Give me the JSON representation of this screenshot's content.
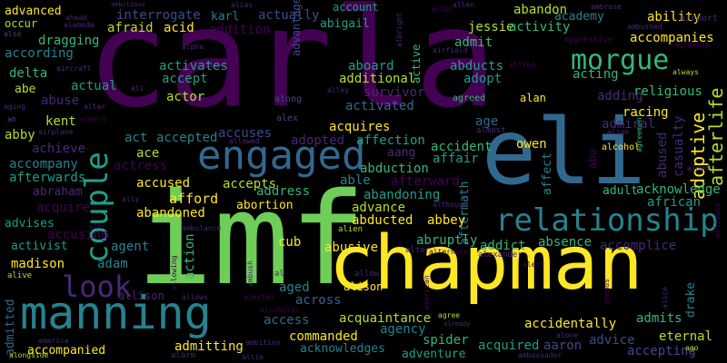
{
  "palette": {
    "purple": "#440154",
    "indigo": "#482878",
    "blue": "#3e4a89",
    "steel": "#31688e",
    "teal": "#26828e",
    "seagreen": "#1f9e89",
    "green": "#35b779",
    "lime": "#6ece58",
    "yellowgreen": "#b5de2b",
    "yellow": "#fde725"
  },
  "words": [
    "carla",
    "imf",
    "chapman",
    "eli",
    "manning",
    "engaged",
    "relationship",
    "couple",
    "morgue",
    "look",
    "adoptive",
    "afterlife",
    "abandon",
    "ability",
    "academy",
    "advanced",
    "occur",
    "interrogate",
    "karl",
    "actually",
    "account",
    "abigail",
    "jessie",
    "activity",
    "accompanies",
    "acid",
    "addition",
    "afraid",
    "dragging",
    "according",
    "admit",
    "abducts",
    "adopt",
    "acting",
    "activates",
    "accept",
    "additional",
    "aboard",
    "delta",
    "abe",
    "actual",
    "actor",
    "abuse",
    "survivor",
    "activated",
    "religious",
    "adding",
    "racing",
    "acquires",
    "age",
    "admiral",
    "kent",
    "abby",
    "achieve",
    "act",
    "accepted",
    "accuses",
    "adopted",
    "affection",
    "accident",
    "affair",
    "aang",
    "owen",
    "abused",
    "casualty",
    "acknowledge",
    "african",
    "ace",
    "actress",
    "accompany",
    "afterwards",
    "abduction",
    "able",
    "accused",
    "accepts",
    "address",
    "abandoning",
    "aftermath",
    "abraham",
    "afford",
    "advance",
    "abducted",
    "abbey",
    "adult",
    "affect",
    "acquire",
    "abandoned",
    "abortion",
    "action",
    "accusing",
    "advises",
    "activist",
    "agent",
    "madison",
    "adam",
    "cub",
    "abusive",
    "abruptly",
    "addict",
    "absence",
    "accomplice",
    "aged",
    "across",
    "alison",
    "acquaintance",
    "agency",
    "accidentally",
    "admits",
    "drake",
    "eternal",
    "admitted",
    "allison",
    "access",
    "commanded",
    "spider",
    "acquired",
    "aaron",
    "advice",
    "accepting",
    "accompanied",
    "admitting",
    "acknowledges",
    "adventure",
    "active",
    "alcohol",
    "aircraft",
    "along",
    "alex",
    "almost",
    "agreed",
    "alan",
    "allowed",
    "aggressive",
    "airport",
    "alien",
    "alter",
    "alexander",
    "allow",
    "alive",
    "alarm",
    "allie",
    "ago",
    "alone",
    "ambushed",
    "ambrose",
    "ambitious",
    "ahead",
    "also",
    "alameda",
    "alibi",
    "alias",
    "albright",
    "airfield",
    "allen",
    "ali",
    "alley",
    "alfred",
    "agreeing",
    "always",
    "aging",
    "ah",
    "albert",
    "airplane",
    "allowing",
    "allows",
    "alerted",
    "alcoholic",
    "agree",
    "already",
    "amends",
    "alice",
    "ambush",
    "al",
    "alert",
    "alternate",
    "american",
    "ambassador",
    "alongside",
    "america",
    "ambition",
    "ambulance",
    "ally",
    "alec",
    "although",
    "afterward",
    "abu",
    "agreement",
    "aided",
    "alliance",
    "align",
    "alpha",
    "altar",
    "advantage",
    "ahead"
  ]
}
